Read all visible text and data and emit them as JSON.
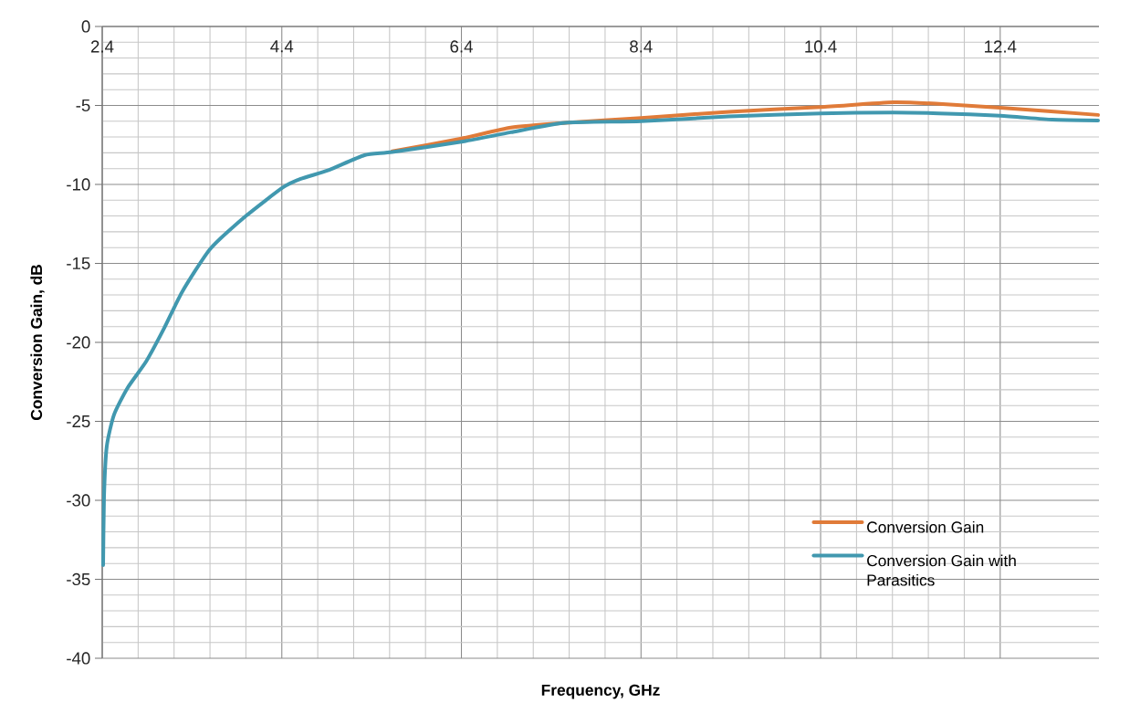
{
  "chart_data": {
    "type": "line",
    "xlabel": "Frequency, GHz",
    "ylabel": "Conversion Gain, dB",
    "xlim": [
      2.4,
      13.5
    ],
    "ylim": [
      -40,
      0
    ],
    "xticks": [
      2.4,
      4.4,
      6.4,
      8.4,
      10.4,
      12.4
    ],
    "yticks": [
      -40,
      -35,
      -30,
      -25,
      -20,
      -15,
      -10,
      -5,
      0
    ],
    "grid": true,
    "legend": "bottom right",
    "marker": "none",
    "line_style": "solid",
    "series": [
      {
        "name": "Conversion Gain",
        "color": "#e07b39",
        "x": [
          5.63,
          6.4,
          6.95,
          7.56,
          8.4,
          9.38,
          10.4,
          11.21,
          11.72,
          12.4,
          13.49
        ],
        "values": [
          -7.9,
          -7.1,
          -6.4,
          -6.1,
          -5.8,
          -5.4,
          -5.1,
          -4.8,
          -4.9,
          -5.15,
          -5.6
        ]
      },
      {
        "name": "Conversion Gain with Parasitics",
        "color": "#4198af",
        "x": [
          2.41,
          2.42,
          2.45,
          2.53,
          2.68,
          2.89,
          3.09,
          3.29,
          3.6,
          4.0,
          4.41,
          4.61,
          4.92,
          5.32,
          5.63,
          6.4,
          6.95,
          7.56,
          8.4,
          9.38,
          10.4,
          11.21,
          11.72,
          12.4,
          12.98,
          13.49
        ],
        "values": [
          -34.1,
          -29.8,
          -26.6,
          -24.6,
          -22.9,
          -21.2,
          -19.1,
          -16.8,
          -14.1,
          -12.0,
          -10.2,
          -9.65,
          -9.1,
          -8.15,
          -7.95,
          -7.3,
          -6.7,
          -6.1,
          -6.0,
          -5.7,
          -5.5,
          -5.45,
          -5.5,
          -5.65,
          -5.9,
          -5.95
        ]
      }
    ]
  }
}
